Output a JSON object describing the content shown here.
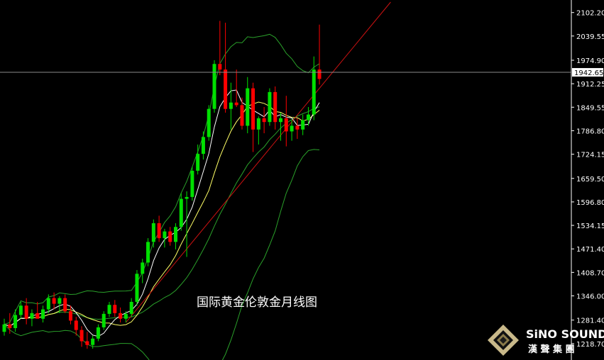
{
  "caption": "国际黄金伦敦金月线图",
  "logo": {
    "name": "SiNO SOUND",
    "chinese": "漢 聲 集 團"
  },
  "colors": {
    "background": "#000000",
    "up": "#00e000",
    "down": "#ff0000",
    "ma_short": "#ffffff",
    "ma_mid": "#ffff66",
    "bollinger": "#2aa02a",
    "trendline": "#cc1111",
    "price_line": "#8c8c8c"
  },
  "chart_data": {
    "type": "candlestick",
    "ylim": [
      1190.0,
      2130.0
    ],
    "y_ticks": [
      "2102.20",
      "2039.55",
      "1974.90",
      "1912.25",
      "1849.55",
      "1786.80",
      "1724.15",
      "1659.50",
      "1596.80",
      "1534.15",
      "1471.40",
      "1408.70",
      "1346.00",
      "1281.40",
      "1218.70"
    ],
    "current_price": "1942.65",
    "candles": [
      [
        1250,
        1285,
        1240,
        1270
      ],
      [
        1270,
        1300,
        1245,
        1260
      ],
      [
        1260,
        1310,
        1250,
        1295
      ],
      [
        1295,
        1330,
        1285,
        1320
      ],
      [
        1320,
        1340,
        1270,
        1285
      ],
      [
        1285,
        1310,
        1265,
        1300
      ],
      [
        1300,
        1330,
        1290,
        1285
      ],
      [
        1285,
        1320,
        1275,
        1310
      ],
      [
        1310,
        1350,
        1300,
        1340
      ],
      [
        1340,
        1355,
        1310,
        1325
      ],
      [
        1325,
        1345,
        1300,
        1340
      ],
      [
        1340,
        1350,
        1300,
        1305
      ],
      [
        1305,
        1320,
        1270,
        1280
      ],
      [
        1280,
        1290,
        1240,
        1255
      ],
      [
        1255,
        1265,
        1210,
        1225
      ],
      [
        1225,
        1250,
        1205,
        1215
      ],
      [
        1215,
        1240,
        1205,
        1232
      ],
      [
        1232,
        1270,
        1225,
        1262
      ],
      [
        1262,
        1305,
        1255,
        1298
      ],
      [
        1298,
        1330,
        1290,
        1322
      ],
      [
        1322,
        1335,
        1290,
        1300
      ],
      [
        1300,
        1315,
        1275,
        1285
      ],
      [
        1285,
        1305,
        1275,
        1298
      ],
      [
        1298,
        1340,
        1290,
        1330
      ],
      [
        1330,
        1415,
        1320,
        1405
      ],
      [
        1405,
        1445,
        1380,
        1435
      ],
      [
        1435,
        1500,
        1425,
        1490
      ],
      [
        1490,
        1550,
        1475,
        1540
      ],
      [
        1540,
        1560,
        1490,
        1500
      ],
      [
        1500,
        1525,
        1475,
        1518
      ],
      [
        1518,
        1530,
        1480,
        1490
      ],
      [
        1490,
        1540,
        1470,
        1530
      ],
      [
        1530,
        1620,
        1520,
        1605
      ],
      [
        1605,
        1625,
        1450,
        1610
      ],
      [
        1610,
        1690,
        1600,
        1680
      ],
      [
        1680,
        1750,
        1670,
        1725
      ],
      [
        1725,
        1785,
        1710,
        1770
      ],
      [
        1770,
        1855,
        1760,
        1845
      ],
      [
        1845,
        1975,
        1835,
        1965
      ],
      [
        1965,
        2080,
        1935,
        1950
      ],
      [
        1950,
        2075,
        1835,
        1845
      ],
      [
        1845,
        1915,
        1790,
        1862
      ],
      [
        1862,
        1950,
        1850,
        1855
      ],
      [
        1855,
        1875,
        1790,
        1800
      ],
      [
        1800,
        1930,
        1780,
        1900
      ],
      [
        1900,
        1915,
        1730,
        1790
      ],
      [
        1790,
        1825,
        1750,
        1820
      ],
      [
        1820,
        1850,
        1780,
        1810
      ],
      [
        1810,
        1900,
        1800,
        1890
      ],
      [
        1890,
        1905,
        1790,
        1810
      ],
      [
        1810,
        1835,
        1760,
        1820
      ],
      [
        1820,
        1880,
        1745,
        1785
      ],
      [
        1785,
        1815,
        1760,
        1800
      ],
      [
        1800,
        1820,
        1765,
        1790
      ],
      [
        1790,
        1830,
        1775,
        1815
      ],
      [
        1815,
        1850,
        1800,
        1830
      ],
      [
        1830,
        1985,
        1815,
        1950
      ],
      [
        1950,
        2070,
        1910,
        1925
      ]
    ]
  }
}
